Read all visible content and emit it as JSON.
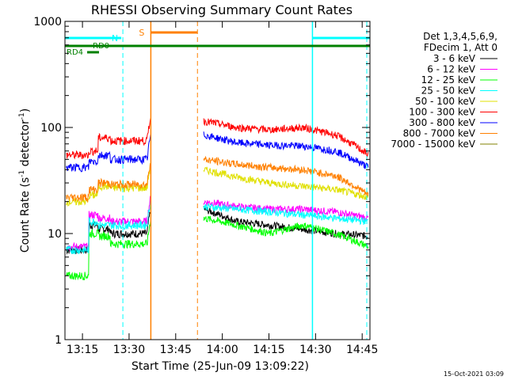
{
  "chart_data": {
    "type": "line",
    "title": "RHESSI Observing Summary Count Rates",
    "xlabel": "Start Time (25-Jun-09 13:09:22)",
    "ylabel_main": "Count Rate (s",
    "ylabel_sup1": "-1",
    "ylabel_mid": " detector",
    "ylabel_sup2": "-1",
    "ylabel_end": ")",
    "y_scale": "log",
    "ylim": [
      1,
      1000
    ],
    "xlim_minutes": [
      13.1,
      14.8
    ],
    "x_ticks": [
      "13:15",
      "13:30",
      "13:45",
      "14:00",
      "14:15",
      "14:30",
      "14:45"
    ],
    "y_ticks": [
      "1",
      "10",
      "100",
      "1000"
    ],
    "legend_header": [
      "Det 1,3,4,5,6,9,",
      "FDecim 1, Att 0"
    ],
    "timestamp": "15-Oct-2021 03:09",
    "flags": {
      "saa": {
        "label": "S",
        "color": "#ff8000",
        "start": "13:37",
        "end": "13:52"
      },
      "night": {
        "label": "N",
        "color": "#00ffff"
      },
      "rd0": {
        "label": "RD0",
        "color": "#008000"
      },
      "rd4": {
        "label": "RD4",
        "color": "#008000"
      }
    },
    "series": [
      {
        "name": "3 - 6 keV",
        "color": "#000000",
        "pre": [
          7,
          12,
          11,
          10
        ],
        "post": [
          17,
          13,
          12,
          11,
          10,
          9.5
        ]
      },
      {
        "name": "6 - 12 keV",
        "color": "#ff00ff",
        "pre": [
          7.5,
          15,
          14,
          13
        ],
        "post": [
          20,
          18,
          17,
          17,
          16,
          14
        ]
      },
      {
        "name": "12 - 25 keV",
        "color": "#00ff00",
        "pre": [
          4,
          10,
          9.5,
          8
        ],
        "post": [
          14,
          12,
          10,
          12,
          10,
          7.5
        ]
      },
      {
        "name": "25 - 50 keV",
        "color": "#00ffff",
        "pre": [
          7,
          13,
          12,
          12
        ],
        "post": [
          18,
          17,
          16,
          15,
          14,
          13
        ]
      },
      {
        "name": "50 - 100 keV",
        "color": "#e0e000",
        "pre": [
          20,
          23,
          28,
          27
        ],
        "post": [
          40,
          34,
          30,
          28,
          26,
          22
        ]
      },
      {
        "name": "100 - 300 keV",
        "color": "#ff0000",
        "pre": [
          55,
          60,
          80,
          75
        ],
        "post": [
          115,
          100,
          95,
          100,
          85,
          55
        ]
      },
      {
        "name": "300 - 800 keV",
        "color": "#0000ff",
        "pre": [
          42,
          48,
          55,
          50
        ],
        "post": [
          85,
          72,
          68,
          67,
          60,
          42
        ]
      },
      {
        "name": "800 - 7000 keV",
        "color": "#ff8000",
        "pre": [
          22,
          26,
          30,
          29
        ],
        "post": [
          50,
          45,
          42,
          40,
          35,
          23
        ]
      },
      {
        "name": "7000 - 15000 keV",
        "color": "#808000",
        "pre": [],
        "post": []
      }
    ]
  }
}
